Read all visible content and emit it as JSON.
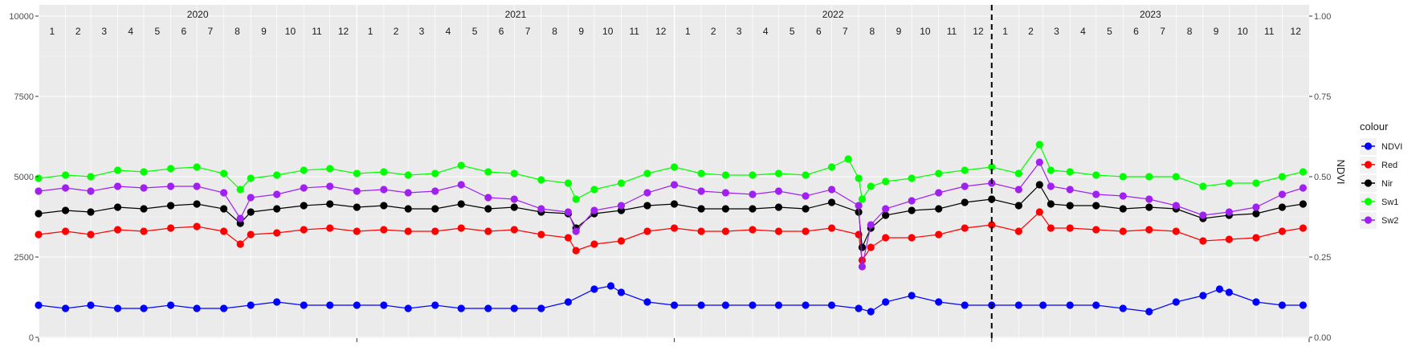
{
  "chart_data": {
    "type": "line",
    "title": "",
    "xlabel": "",
    "ylabel": "",
    "y2label": "NDVI",
    "xlim": [
      "2020-01-01",
      "2024-01-01"
    ],
    "ylim": [
      0,
      10000
    ],
    "y2lim": [
      0,
      1
    ],
    "y_ticks": [
      "0",
      "2500",
      "5000",
      "7500",
      "10000"
    ],
    "y2_ticks": [
      "0.00",
      "0.25",
      "0.50",
      "0.75",
      "1.00"
    ],
    "years": [
      "2020",
      "2021",
      "2022",
      "2023"
    ],
    "months": [
      "1",
      "2",
      "3",
      "4",
      "5",
      "6",
      "7",
      "8",
      "9",
      "10",
      "11",
      "12"
    ],
    "vline_date": "2023-01-01",
    "grid": true,
    "legend_position": "right",
    "legend_title": "colour",
    "series": [
      {
        "name": "NDVI",
        "color": "#0000ff",
        "axis": "right",
        "points": [
          [
            "2020-01-01",
            0.1
          ],
          [
            "2020-02-01",
            0.09
          ],
          [
            "2020-03-01",
            0.1
          ],
          [
            "2020-04-01",
            0.09
          ],
          [
            "2020-05-01",
            0.09
          ],
          [
            "2020-06-01",
            0.1
          ],
          [
            "2020-07-01",
            0.09
          ],
          [
            "2020-08-01",
            0.09
          ],
          [
            "2020-09-01",
            0.1
          ],
          [
            "2020-10-01",
            0.11
          ],
          [
            "2020-11-01",
            0.1
          ],
          [
            "2020-12-01",
            0.1
          ],
          [
            "2021-01-01",
            0.1
          ],
          [
            "2021-02-01",
            0.1
          ],
          [
            "2021-03-01",
            0.09
          ],
          [
            "2021-04-01",
            0.1
          ],
          [
            "2021-05-01",
            0.09
          ],
          [
            "2021-06-01",
            0.09
          ],
          [
            "2021-07-01",
            0.09
          ],
          [
            "2021-08-01",
            0.09
          ],
          [
            "2021-09-01",
            0.11
          ],
          [
            "2021-10-01",
            0.15
          ],
          [
            "2021-10-20",
            0.16
          ],
          [
            "2021-11-01",
            0.14
          ],
          [
            "2021-12-01",
            0.11
          ],
          [
            "2022-01-01",
            0.1
          ],
          [
            "2022-02-01",
            0.1
          ],
          [
            "2022-03-01",
            0.1
          ],
          [
            "2022-04-01",
            0.1
          ],
          [
            "2022-05-01",
            0.1
          ],
          [
            "2022-06-01",
            0.1
          ],
          [
            "2022-07-01",
            0.1
          ],
          [
            "2022-08-01",
            0.09
          ],
          [
            "2022-08-15",
            0.08
          ],
          [
            "2022-09-01",
            0.11
          ],
          [
            "2022-10-01",
            0.13
          ],
          [
            "2022-11-01",
            0.11
          ],
          [
            "2022-12-01",
            0.1
          ],
          [
            "2023-01-01",
            0.1
          ],
          [
            "2023-02-01",
            0.1
          ],
          [
            "2023-03-01",
            0.1
          ],
          [
            "2023-04-01",
            0.1
          ],
          [
            "2023-05-01",
            0.1
          ],
          [
            "2023-06-01",
            0.09
          ],
          [
            "2023-07-01",
            0.08
          ],
          [
            "2023-08-01",
            0.11
          ],
          [
            "2023-09-01",
            0.13
          ],
          [
            "2023-09-20",
            0.15
          ],
          [
            "2023-10-01",
            0.14
          ],
          [
            "2023-11-01",
            0.11
          ],
          [
            "2023-12-01",
            0.1
          ],
          [
            "2023-12-25",
            0.1
          ]
        ]
      },
      {
        "name": "Red",
        "color": "#ff0000",
        "axis": "left",
        "points": [
          [
            "2020-01-01",
            3200
          ],
          [
            "2020-02-01",
            3300
          ],
          [
            "2020-03-01",
            3200
          ],
          [
            "2020-04-01",
            3350
          ],
          [
            "2020-05-01",
            3300
          ],
          [
            "2020-06-01",
            3400
          ],
          [
            "2020-07-01",
            3450
          ],
          [
            "2020-08-01",
            3300
          ],
          [
            "2020-08-20",
            2900
          ],
          [
            "2020-09-01",
            3200
          ],
          [
            "2020-10-01",
            3250
          ],
          [
            "2020-11-01",
            3350
          ],
          [
            "2020-12-01",
            3400
          ],
          [
            "2021-01-01",
            3300
          ],
          [
            "2021-02-01",
            3350
          ],
          [
            "2021-03-01",
            3300
          ],
          [
            "2021-04-01",
            3300
          ],
          [
            "2021-05-01",
            3400
          ],
          [
            "2021-06-01",
            3300
          ],
          [
            "2021-07-01",
            3350
          ],
          [
            "2021-08-01",
            3200
          ],
          [
            "2021-09-01",
            3100
          ],
          [
            "2021-09-10",
            2700
          ],
          [
            "2021-10-01",
            2900
          ],
          [
            "2021-11-01",
            3000
          ],
          [
            "2021-12-01",
            3300
          ],
          [
            "2022-01-01",
            3400
          ],
          [
            "2022-02-01",
            3300
          ],
          [
            "2022-03-01",
            3300
          ],
          [
            "2022-04-01",
            3350
          ],
          [
            "2022-05-01",
            3300
          ],
          [
            "2022-06-01",
            3300
          ],
          [
            "2022-07-01",
            3400
          ],
          [
            "2022-08-01",
            3200
          ],
          [
            "2022-08-05",
            2400
          ],
          [
            "2022-08-15",
            2800
          ],
          [
            "2022-09-01",
            3100
          ],
          [
            "2022-10-01",
            3100
          ],
          [
            "2022-11-01",
            3200
          ],
          [
            "2022-12-01",
            3400
          ],
          [
            "2023-01-01",
            3500
          ],
          [
            "2023-02-01",
            3300
          ],
          [
            "2023-02-25",
            3900
          ],
          [
            "2023-03-10",
            3400
          ],
          [
            "2023-04-01",
            3400
          ],
          [
            "2023-05-01",
            3350
          ],
          [
            "2023-06-01",
            3300
          ],
          [
            "2023-07-01",
            3350
          ],
          [
            "2023-08-01",
            3300
          ],
          [
            "2023-09-01",
            3000
          ],
          [
            "2023-10-01",
            3050
          ],
          [
            "2023-11-01",
            3100
          ],
          [
            "2023-12-01",
            3300
          ],
          [
            "2023-12-25",
            3400
          ]
        ]
      },
      {
        "name": "Nir",
        "color": "#000000",
        "axis": "left",
        "points": [
          [
            "2020-01-01",
            3850
          ],
          [
            "2020-02-01",
            3950
          ],
          [
            "2020-03-01",
            3900
          ],
          [
            "2020-04-01",
            4050
          ],
          [
            "2020-05-01",
            4000
          ],
          [
            "2020-06-01",
            4100
          ],
          [
            "2020-07-01",
            4150
          ],
          [
            "2020-08-01",
            4000
          ],
          [
            "2020-08-20",
            3550
          ],
          [
            "2020-09-01",
            3900
          ],
          [
            "2020-10-01",
            4000
          ],
          [
            "2020-11-01",
            4100
          ],
          [
            "2020-12-01",
            4150
          ],
          [
            "2021-01-01",
            4050
          ],
          [
            "2021-02-01",
            4100
          ],
          [
            "2021-03-01",
            4000
          ],
          [
            "2021-04-01",
            4000
          ],
          [
            "2021-05-01",
            4150
          ],
          [
            "2021-06-01",
            4000
          ],
          [
            "2021-07-01",
            4050
          ],
          [
            "2021-08-01",
            3900
          ],
          [
            "2021-09-01",
            3850
          ],
          [
            "2021-09-10",
            3400
          ],
          [
            "2021-10-01",
            3850
          ],
          [
            "2021-11-01",
            3950
          ],
          [
            "2021-12-01",
            4100
          ],
          [
            "2022-01-01",
            4150
          ],
          [
            "2022-02-01",
            4000
          ],
          [
            "2022-03-01",
            4000
          ],
          [
            "2022-04-01",
            4000
          ],
          [
            "2022-05-01",
            4050
          ],
          [
            "2022-06-01",
            4000
          ],
          [
            "2022-07-01",
            4200
          ],
          [
            "2022-08-01",
            3900
          ],
          [
            "2022-08-05",
            2800
          ],
          [
            "2022-08-15",
            3400
          ],
          [
            "2022-09-01",
            3800
          ],
          [
            "2022-10-01",
            3950
          ],
          [
            "2022-11-01",
            4000
          ],
          [
            "2022-12-01",
            4200
          ],
          [
            "2023-01-01",
            4300
          ],
          [
            "2023-02-01",
            4100
          ],
          [
            "2023-02-25",
            4750
          ],
          [
            "2023-03-10",
            4150
          ],
          [
            "2023-04-01",
            4100
          ],
          [
            "2023-05-01",
            4100
          ],
          [
            "2023-06-01",
            4000
          ],
          [
            "2023-07-01",
            4050
          ],
          [
            "2023-08-01",
            4000
          ],
          [
            "2023-09-01",
            3700
          ],
          [
            "2023-10-01",
            3800
          ],
          [
            "2023-11-01",
            3850
          ],
          [
            "2023-12-01",
            4050
          ],
          [
            "2023-12-25",
            4150
          ]
        ]
      },
      {
        "name": "Sw1",
        "color": "#00ff00",
        "axis": "left",
        "points": [
          [
            "2020-01-01",
            4950
          ],
          [
            "2020-02-01",
            5050
          ],
          [
            "2020-03-01",
            5000
          ],
          [
            "2020-04-01",
            5200
          ],
          [
            "2020-05-01",
            5150
          ],
          [
            "2020-06-01",
            5250
          ],
          [
            "2020-07-01",
            5300
          ],
          [
            "2020-08-01",
            5100
          ],
          [
            "2020-08-20",
            4600
          ],
          [
            "2020-09-01",
            4950
          ],
          [
            "2020-10-01",
            5050
          ],
          [
            "2020-11-01",
            5200
          ],
          [
            "2020-12-01",
            5250
          ],
          [
            "2021-01-01",
            5100
          ],
          [
            "2021-02-01",
            5150
          ],
          [
            "2021-03-01",
            5050
          ],
          [
            "2021-04-01",
            5100
          ],
          [
            "2021-05-01",
            5350
          ],
          [
            "2021-06-01",
            5150
          ],
          [
            "2021-07-01",
            5100
          ],
          [
            "2021-08-01",
            4900
          ],
          [
            "2021-09-01",
            4800
          ],
          [
            "2021-09-10",
            4300
          ],
          [
            "2021-10-01",
            4600
          ],
          [
            "2021-11-01",
            4800
          ],
          [
            "2021-12-01",
            5100
          ],
          [
            "2022-01-01",
            5300
          ],
          [
            "2022-02-01",
            5100
          ],
          [
            "2022-03-01",
            5050
          ],
          [
            "2022-04-01",
            5050
          ],
          [
            "2022-05-01",
            5100
          ],
          [
            "2022-06-01",
            5050
          ],
          [
            "2022-07-01",
            5300
          ],
          [
            "2022-07-20",
            5550
          ],
          [
            "2022-08-01",
            4950
          ],
          [
            "2022-08-05",
            4300
          ],
          [
            "2022-08-15",
            4700
          ],
          [
            "2022-09-01",
            4850
          ],
          [
            "2022-10-01",
            4950
          ],
          [
            "2022-11-01",
            5100
          ],
          [
            "2022-12-01",
            5200
          ],
          [
            "2023-01-01",
            5300
          ],
          [
            "2023-02-01",
            5100
          ],
          [
            "2023-02-25",
            6000
          ],
          [
            "2023-03-10",
            5200
          ],
          [
            "2023-04-01",
            5150
          ],
          [
            "2023-05-01",
            5050
          ],
          [
            "2023-06-01",
            5000
          ],
          [
            "2023-07-01",
            5000
          ],
          [
            "2023-08-01",
            5000
          ],
          [
            "2023-09-01",
            4700
          ],
          [
            "2023-10-01",
            4800
          ],
          [
            "2023-11-01",
            4800
          ],
          [
            "2023-12-01",
            5000
          ],
          [
            "2023-12-25",
            5150
          ]
        ]
      },
      {
        "name": "Sw2",
        "color": "#a020f0",
        "axis": "left",
        "points": [
          [
            "2020-01-01",
            4550
          ],
          [
            "2020-02-01",
            4650
          ],
          [
            "2020-03-01",
            4550
          ],
          [
            "2020-04-01",
            4700
          ],
          [
            "2020-05-01",
            4650
          ],
          [
            "2020-06-01",
            4700
          ],
          [
            "2020-07-01",
            4700
          ],
          [
            "2020-08-01",
            4500
          ],
          [
            "2020-08-20",
            3700
          ],
          [
            "2020-09-01",
            4350
          ],
          [
            "2020-10-01",
            4450
          ],
          [
            "2020-11-01",
            4650
          ],
          [
            "2020-12-01",
            4700
          ],
          [
            "2021-01-01",
            4550
          ],
          [
            "2021-02-01",
            4600
          ],
          [
            "2021-03-01",
            4500
          ],
          [
            "2021-04-01",
            4550
          ],
          [
            "2021-05-01",
            4750
          ],
          [
            "2021-06-01",
            4350
          ],
          [
            "2021-07-01",
            4300
          ],
          [
            "2021-08-01",
            4000
          ],
          [
            "2021-09-01",
            3900
          ],
          [
            "2021-09-10",
            3300
          ],
          [
            "2021-10-01",
            3950
          ],
          [
            "2021-11-01",
            4100
          ],
          [
            "2021-12-01",
            4500
          ],
          [
            "2022-01-01",
            4750
          ],
          [
            "2022-02-01",
            4550
          ],
          [
            "2022-03-01",
            4500
          ],
          [
            "2022-04-01",
            4450
          ],
          [
            "2022-05-01",
            4550
          ],
          [
            "2022-06-01",
            4400
          ],
          [
            "2022-07-01",
            4600
          ],
          [
            "2022-08-01",
            4100
          ],
          [
            "2022-08-05",
            2200
          ],
          [
            "2022-08-15",
            3500
          ],
          [
            "2022-09-01",
            4000
          ],
          [
            "2022-10-01",
            4250
          ],
          [
            "2022-11-01",
            4500
          ],
          [
            "2022-12-01",
            4700
          ],
          [
            "2023-01-01",
            4800
          ],
          [
            "2023-02-01",
            4600
          ],
          [
            "2023-02-25",
            5450
          ],
          [
            "2023-03-10",
            4700
          ],
          [
            "2023-04-01",
            4600
          ],
          [
            "2023-05-01",
            4450
          ],
          [
            "2023-06-01",
            4400
          ],
          [
            "2023-07-01",
            4300
          ],
          [
            "2023-08-01",
            4100
          ],
          [
            "2023-09-01",
            3800
          ],
          [
            "2023-10-01",
            3900
          ],
          [
            "2023-11-01",
            4050
          ],
          [
            "2023-12-01",
            4450
          ],
          [
            "2023-12-25",
            4650
          ]
        ]
      }
    ]
  }
}
